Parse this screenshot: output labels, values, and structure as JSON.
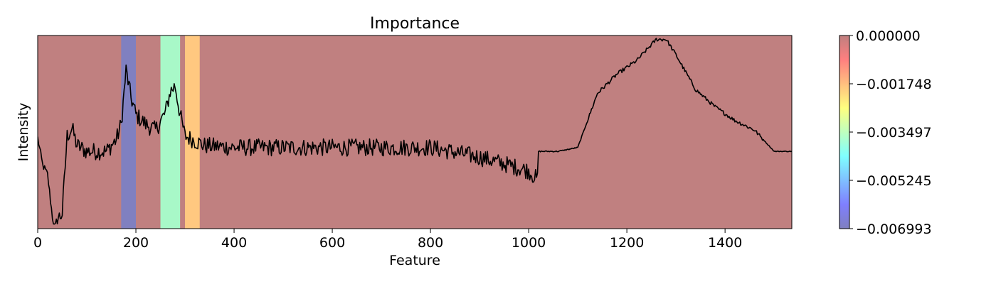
{
  "chart_data": {
    "type": "line",
    "title": "Importance",
    "xlabel": "Feature",
    "ylabel": "Intensity",
    "xlim": [
      0,
      1536
    ],
    "x_ticks": [
      "0",
      "200",
      "400",
      "600",
      "800",
      "1000",
      "1200",
      "1400"
    ],
    "y_ticks_shown": false,
    "grid": false,
    "background_color": "#c08080",
    "line_color": "#000000",
    "highlight_bands": [
      {
        "x_start": 170,
        "x_end": 200,
        "importance": -0.006993,
        "color": "#8080c0"
      },
      {
        "x_start": 250,
        "x_end": 290,
        "importance": -0.003497,
        "color": "#a8f8c8"
      },
      {
        "x_start": 300,
        "x_end": 330,
        "importance": -0.001748,
        "color": "#ffc880"
      }
    ],
    "series": [
      {
        "x": [
          0,
          10,
          20,
          30,
          35,
          40,
          45,
          50,
          60,
          70,
          80,
          100,
          120,
          140,
          160,
          170,
          180,
          190,
          200,
          220,
          240,
          260,
          270,
          280,
          290,
          300,
          340,
          400,
          500,
          600,
          700,
          800,
          900,
          1000,
          1019,
          1020,
          1060,
          1100,
          1140,
          1180,
          1220,
          1260,
          1280,
          1300,
          1340,
          1380,
          1420,
          1460,
          1500,
          1536
        ],
        "y": [
          0.47,
          0.33,
          0.28,
          0.06,
          0.0,
          0.06,
          0.06,
          0.08,
          0.48,
          0.52,
          0.43,
          0.4,
          0.4,
          0.4,
          0.46,
          0.54,
          0.82,
          0.68,
          0.59,
          0.54,
          0.51,
          0.6,
          0.71,
          0.74,
          0.59,
          0.48,
          0.43,
          0.42,
          0.42,
          0.42,
          0.42,
          0.42,
          0.37,
          0.3,
          0.25,
          0.4,
          0.4,
          0.42,
          0.7,
          0.8,
          0.87,
          0.98,
          0.98,
          0.9,
          0.72,
          0.63,
          0.56,
          0.51,
          0.4,
          0.4
        ]
      }
    ],
    "colorbar": {
      "ticks": [
        "0.000000",
        "−0.001748",
        "−0.003497",
        "−0.005245",
        "−0.006993"
      ],
      "range": [
        -0.006993,
        0.0
      ],
      "colormap": "jet",
      "alpha": 0.5
    }
  }
}
